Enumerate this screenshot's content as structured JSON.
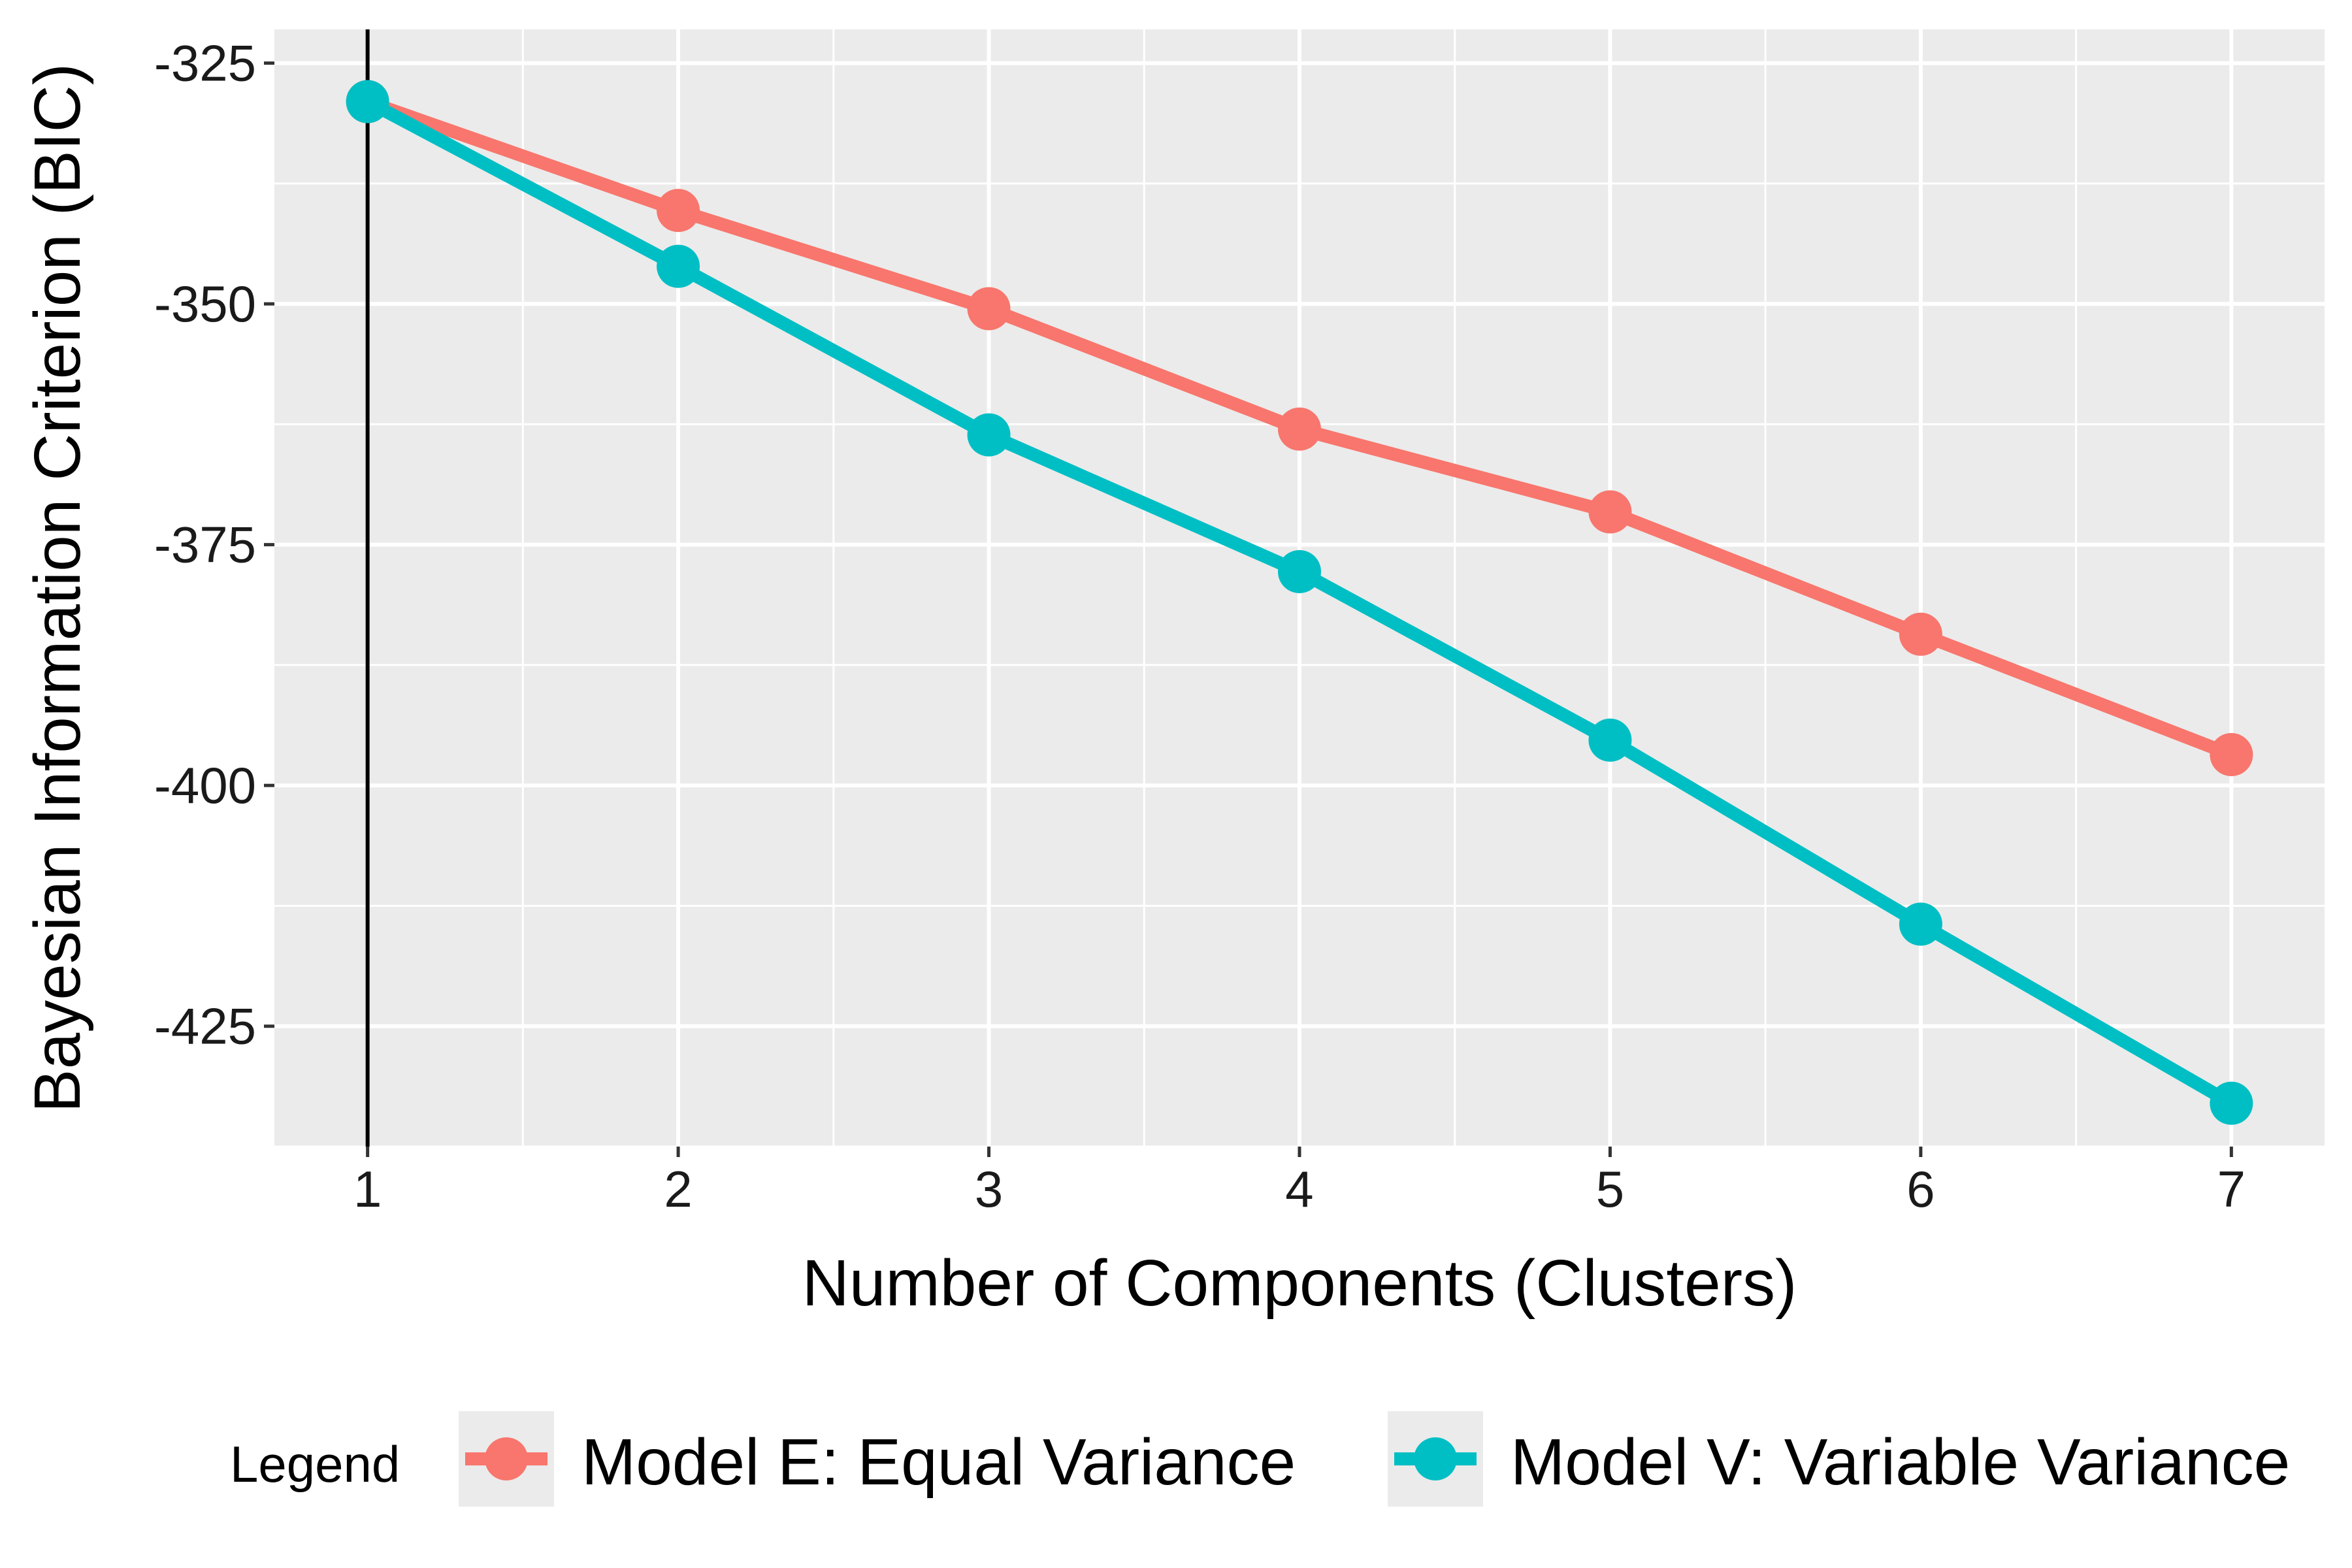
{
  "chart_data": {
    "type": "line",
    "title": "",
    "xlabel": "Number of Components (Clusters)",
    "ylabel": "Bayesian Information Criterion (BIC)",
    "x": [
      1,
      2,
      3,
      4,
      5,
      6,
      7
    ],
    "x_ticks": [
      "1",
      "2",
      "3",
      "4",
      "5",
      "6",
      "7"
    ],
    "y_ticks": [
      "-325",
      "-350",
      "-375",
      "-400",
      "-425"
    ],
    "y_tick_values": [
      -325,
      -350,
      -375,
      -400,
      -425
    ],
    "xlim": [
      0.7,
      7.3
    ],
    "ylim": [
      -437.5,
      -321.5
    ],
    "reference_vline_x": 1,
    "grid": true,
    "legend_title": "Legend",
    "legend_position": "bottom",
    "series": [
      {
        "name": "Model E: Equal Variance",
        "color": "#F8766D",
        "values": [
          -329,
          -340.3,
          -350.5,
          -363,
          -371.6,
          -384.3,
          -396.8
        ]
      },
      {
        "name": "Model V: Variable Variance",
        "color": "#00BFC4",
        "values": [
          -329,
          -346.1,
          -363.6,
          -377.8,
          -395.3,
          -414.4,
          -433
        ]
      }
    ]
  }
}
